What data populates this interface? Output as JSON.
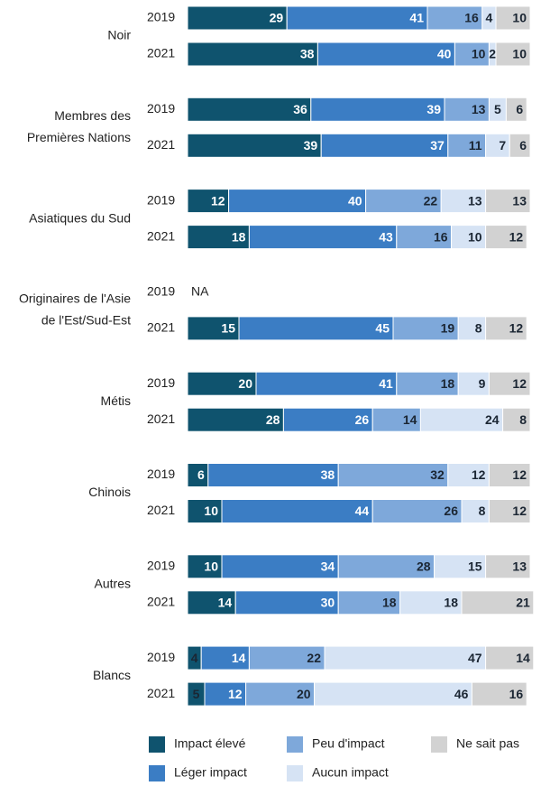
{
  "chart_data": {
    "type": "stacked-bar",
    "orientation": "horizontal",
    "groups": [
      [
        "Noir"
      ],
      [
        "Membres des",
        "Premières Nations"
      ],
      [
        "Asiatiques du Sud"
      ],
      [
        "Originaires de l'Asie",
        "de l'Est/Sud-Est"
      ],
      [
        "Métis"
      ],
      [
        "Chinois"
      ],
      [
        "Autres"
      ],
      [
        "Blancs"
      ]
    ],
    "categories": [
      "2019",
      "2021",
      "2019",
      "2021",
      "2019",
      "2021",
      "2019",
      "2021",
      "2019",
      "2021",
      "2019",
      "2021",
      "2019",
      "2021",
      "2019",
      "2021"
    ],
    "missing_label": "NA",
    "xlim": [
      0,
      100
    ],
    "series": [
      {
        "name": "Impact élevé",
        "color": "#0f536e",
        "values": [
          29,
          38,
          36,
          39,
          12,
          18,
          null,
          15,
          20,
          28,
          6,
          10,
          10,
          14,
          4,
          5
        ]
      },
      {
        "name": "Léger impact",
        "color": "#3b7dc4",
        "values": [
          41,
          40,
          39,
          37,
          40,
          43,
          null,
          45,
          41,
          26,
          38,
          44,
          34,
          30,
          14,
          12
        ]
      },
      {
        "name": "Peu d'impact",
        "color": "#7ea8da",
        "values": [
          16,
          10,
          13,
          11,
          22,
          16,
          null,
          19,
          18,
          14,
          32,
          26,
          28,
          18,
          22,
          20
        ]
      },
      {
        "name": "Aucun impact",
        "color": "#d6e3f4",
        "values": [
          4,
          2,
          5,
          7,
          13,
          10,
          null,
          8,
          9,
          24,
          12,
          8,
          15,
          18,
          47,
          46
        ]
      },
      {
        "name": "Ne sait pas",
        "color": "#d2d2d2",
        "values": [
          10,
          10,
          6,
          6,
          13,
          12,
          null,
          12,
          12,
          8,
          12,
          12,
          13,
          21,
          14,
          16
        ]
      }
    ]
  }
}
